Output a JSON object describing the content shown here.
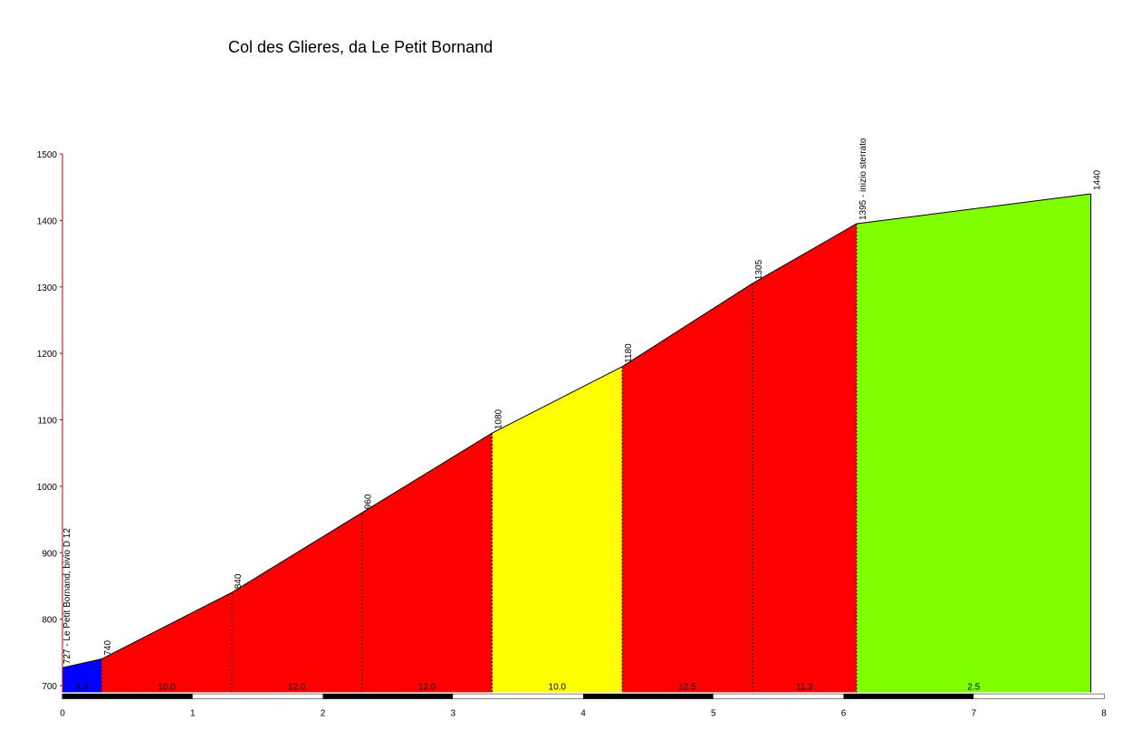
{
  "chart_data": {
    "type": "area",
    "title": "Col des Glieres, da Le Petit Bornand",
    "xlabel": "",
    "ylabel": "",
    "xlim": [
      0,
      8
    ],
    "ylim": [
      690,
      1500
    ],
    "x_ticks": [
      0,
      1,
      2,
      3,
      4,
      5,
      6,
      7,
      8
    ],
    "y_ticks": [
      700,
      800,
      900,
      1000,
      1100,
      1200,
      1300,
      1400,
      1500
    ],
    "grid": false,
    "points": [
      {
        "x": 0,
        "y": 727,
        "label": "727 - Le Petit Bornand, bivio D 12"
      },
      {
        "x": 0.3,
        "y": 740,
        "label": "740"
      },
      {
        "x": 1.3,
        "y": 840,
        "label": "840"
      },
      {
        "x": 2.3,
        "y": 960,
        "label": "960"
      },
      {
        "x": 3.3,
        "y": 1080,
        "label": "1080"
      },
      {
        "x": 4.3,
        "y": 1180,
        "label": "1180"
      },
      {
        "x": 5.3,
        "y": 1305,
        "label": "1305"
      },
      {
        "x": 6.1,
        "y": 1395,
        "label": "1395 - inizio sterrato"
      },
      {
        "x": 7.9,
        "y": 1440,
        "label": "1440"
      }
    ],
    "segments": [
      {
        "from": 0,
        "to": 0.3,
        "gradient": "4.3",
        "color": "#0000ff"
      },
      {
        "from": 0.3,
        "to": 1.3,
        "gradient": "10.0",
        "color": "#ff0000"
      },
      {
        "from": 1.3,
        "to": 2.3,
        "gradient": "12.0",
        "color": "#ff0000"
      },
      {
        "from": 2.3,
        "to": 3.3,
        "gradient": "12.0",
        "color": "#ff0000"
      },
      {
        "from": 3.3,
        "to": 4.3,
        "gradient": "10.0",
        "color": "#ffff00"
      },
      {
        "from": 4.3,
        "to": 5.3,
        "gradient": "12.5",
        "color": "#ff0000"
      },
      {
        "from": 5.3,
        "to": 6.1,
        "gradient": "11.3",
        "color": "#ff0000"
      },
      {
        "from": 6.1,
        "to": 7.9,
        "gradient": "2.5",
        "color": "#80ff00"
      }
    ],
    "colors": {
      "axis_y": "#c00000",
      "axis_x": "#000000",
      "outline": "#000000"
    }
  }
}
